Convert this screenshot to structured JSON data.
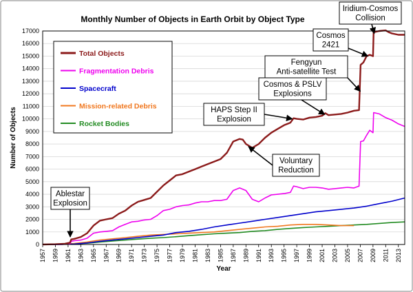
{
  "chart_data": {
    "type": "line",
    "title": "Monthly Number of Objects in Earth Orbit by Object Type",
    "xlabel": "Year",
    "ylabel": "Number of Objects",
    "xlim": [
      1957,
      2014
    ],
    "ylim": [
      0,
      17000
    ],
    "x_ticks": [
      "1957",
      "1959",
      "1961",
      "1963",
      "1965",
      "1967",
      "1969",
      "1971",
      "1973",
      "1975",
      "1977",
      "1979",
      "1981",
      "1983",
      "1985",
      "1987",
      "1989",
      "1991",
      "1993",
      "1995",
      "1997",
      "1999",
      "2001",
      "2003",
      "2005",
      "2007",
      "2009",
      "2011",
      "2013"
    ],
    "y_ticks": [
      "0",
      "1000",
      "2000",
      "3000",
      "4000",
      "5000",
      "6000",
      "7000",
      "8000",
      "9000",
      "10000",
      "11000",
      "12000",
      "13000",
      "14000",
      "15000",
      "16000",
      "17000"
    ],
    "grid": true,
    "legend_position": "top-left",
    "series": [
      {
        "name": "Total Objects",
        "color": "#8b1a1a",
        "points": [
          [
            1957,
            0
          ],
          [
            1959,
            20
          ],
          [
            1960.5,
            60
          ],
          [
            1961.3,
            150
          ],
          [
            1961.5,
            400
          ],
          [
            1962,
            450
          ],
          [
            1963,
            600
          ],
          [
            1964,
            900
          ],
          [
            1965,
            1500
          ],
          [
            1966,
            1900
          ],
          [
            1967,
            2000
          ],
          [
            1968,
            2100
          ],
          [
            1969,
            2450
          ],
          [
            1970,
            2700
          ],
          [
            1971,
            3100
          ],
          [
            1972,
            3400
          ],
          [
            1973,
            3550
          ],
          [
            1974,
            3700
          ],
          [
            1975,
            4200
          ],
          [
            1976,
            4700
          ],
          [
            1977,
            5100
          ],
          [
            1978,
            5500
          ],
          [
            1979,
            5600
          ],
          [
            1980,
            5800
          ],
          [
            1981,
            6000
          ],
          [
            1982,
            6200
          ],
          [
            1983,
            6400
          ],
          [
            1984,
            6600
          ],
          [
            1985,
            6800
          ],
          [
            1986,
            7300
          ],
          [
            1987,
            8200
          ],
          [
            1988,
            8400
          ],
          [
            1988.5,
            8350
          ],
          [
            1989,
            8000
          ],
          [
            1990,
            7700
          ],
          [
            1991,
            8000
          ],
          [
            1992,
            8500
          ],
          [
            1993,
            8900
          ],
          [
            1994,
            9200
          ],
          [
            1995,
            9500
          ],
          [
            1996,
            9700
          ],
          [
            1996.5,
            10050
          ],
          [
            1997,
            10000
          ],
          [
            1998,
            9950
          ],
          [
            1999,
            10100
          ],
          [
            2000,
            10150
          ],
          [
            2001,
            10250
          ],
          [
            2001.5,
            10450
          ],
          [
            2002,
            10300
          ],
          [
            2003,
            10350
          ],
          [
            2004,
            10400
          ],
          [
            2005,
            10500
          ],
          [
            2006,
            10650
          ],
          [
            2006.8,
            10700
          ],
          [
            2007.05,
            14300
          ],
          [
            2007.5,
            14500
          ],
          [
            2008,
            15000
          ],
          [
            2008.5,
            15100
          ],
          [
            2009,
            15000
          ],
          [
            2009.1,
            16900
          ],
          [
            2010,
            17000
          ],
          [
            2011,
            17050
          ],
          [
            2011.5,
            16900
          ],
          [
            2012,
            16800
          ],
          [
            2013,
            16700
          ],
          [
            2014,
            16700
          ]
        ]
      },
      {
        "name": "Fragmentation Debris",
        "color": "#ee00ee",
        "points": [
          [
            1957,
            0
          ],
          [
            1960,
            0
          ],
          [
            1961.3,
            50
          ],
          [
            1961.5,
            250
          ],
          [
            1962,
            300
          ],
          [
            1963,
            350
          ],
          [
            1964,
            500
          ],
          [
            1965,
            900
          ],
          [
            1966,
            1000
          ],
          [
            1967,
            1050
          ],
          [
            1968,
            1100
          ],
          [
            1969,
            1400
          ],
          [
            1970,
            1600
          ],
          [
            1971,
            1800
          ],
          [
            1972,
            1850
          ],
          [
            1973,
            1950
          ],
          [
            1974,
            2000
          ],
          [
            1975,
            2300
          ],
          [
            1976,
            2700
          ],
          [
            1977,
            2800
          ],
          [
            1978,
            3000
          ],
          [
            1979,
            3100
          ],
          [
            1980,
            3150
          ],
          [
            1981,
            3300
          ],
          [
            1982,
            3400
          ],
          [
            1983,
            3400
          ],
          [
            1984,
            3500
          ],
          [
            1985,
            3500
          ],
          [
            1986,
            3600
          ],
          [
            1987,
            4300
          ],
          [
            1988,
            4500
          ],
          [
            1989,
            4300
          ],
          [
            1990,
            3600
          ],
          [
            1991,
            3400
          ],
          [
            1992,
            3700
          ],
          [
            1993,
            3950
          ],
          [
            1994,
            4000
          ],
          [
            1995,
            4050
          ],
          [
            1996,
            4150
          ],
          [
            1996.5,
            4650
          ],
          [
            1997,
            4600
          ],
          [
            1998,
            4450
          ],
          [
            1999,
            4550
          ],
          [
            2000,
            4550
          ],
          [
            2001,
            4500
          ],
          [
            2002,
            4400
          ],
          [
            2003,
            4450
          ],
          [
            2004,
            4500
          ],
          [
            2005,
            4550
          ],
          [
            2006,
            4500
          ],
          [
            2006.8,
            4650
          ],
          [
            2007.05,
            8200
          ],
          [
            2007.5,
            8250
          ],
          [
            2008,
            8700
          ],
          [
            2008.5,
            9100
          ],
          [
            2009,
            8900
          ],
          [
            2009.1,
            10500
          ],
          [
            2010,
            10400
          ],
          [
            2011,
            10100
          ],
          [
            2012,
            9900
          ],
          [
            2013,
            9600
          ],
          [
            2014,
            9400
          ]
        ]
      },
      {
        "name": "Spacecraft",
        "color": "#0000cc",
        "points": [
          [
            1957,
            0
          ],
          [
            1960,
            10
          ],
          [
            1962,
            40
          ],
          [
            1964,
            120
          ],
          [
            1966,
            250
          ],
          [
            1968,
            350
          ],
          [
            1970,
            450
          ],
          [
            1972,
            550
          ],
          [
            1974,
            650
          ],
          [
            1976,
            750
          ],
          [
            1978,
            950
          ],
          [
            1980,
            1050
          ],
          [
            1982,
            1200
          ],
          [
            1984,
            1400
          ],
          [
            1986,
            1550
          ],
          [
            1988,
            1700
          ],
          [
            1990,
            1850
          ],
          [
            1992,
            2000
          ],
          [
            1994,
            2150
          ],
          [
            1996,
            2300
          ],
          [
            1998,
            2450
          ],
          [
            2000,
            2600
          ],
          [
            2002,
            2700
          ],
          [
            2004,
            2800
          ],
          [
            2006,
            2900
          ],
          [
            2008,
            3050
          ],
          [
            2010,
            3250
          ],
          [
            2012,
            3450
          ],
          [
            2014,
            3700
          ]
        ]
      },
      {
        "name": "Mission-related Debris",
        "color": "#f07820",
        "points": [
          [
            1957,
            0
          ],
          [
            1960,
            20
          ],
          [
            1962,
            80
          ],
          [
            1964,
            200
          ],
          [
            1966,
            350
          ],
          [
            1968,
            450
          ],
          [
            1970,
            550
          ],
          [
            1972,
            650
          ],
          [
            1974,
            750
          ],
          [
            1976,
            800
          ],
          [
            1978,
            850
          ],
          [
            1980,
            900
          ],
          [
            1982,
            950
          ],
          [
            1984,
            1000
          ],
          [
            1986,
            1100
          ],
          [
            1988,
            1200
          ],
          [
            1990,
            1300
          ],
          [
            1992,
            1400
          ],
          [
            1994,
            1450
          ],
          [
            1996,
            1550
          ],
          [
            1998,
            1600
          ],
          [
            2000,
            1600
          ],
          [
            2002,
            1550
          ],
          [
            2004,
            1500
          ],
          [
            2006,
            1500
          ]
        ]
      },
      {
        "name": "Rocket Bodies",
        "color": "#228b22",
        "points": [
          [
            1957,
            0
          ],
          [
            1960,
            10
          ],
          [
            1962,
            50
          ],
          [
            1964,
            100
          ],
          [
            1966,
            200
          ],
          [
            1968,
            280
          ],
          [
            1970,
            350
          ],
          [
            1972,
            430
          ],
          [
            1974,
            500
          ],
          [
            1976,
            550
          ],
          [
            1978,
            620
          ],
          [
            1980,
            700
          ],
          [
            1982,
            780
          ],
          [
            1984,
            850
          ],
          [
            1986,
            900
          ],
          [
            1988,
            950
          ],
          [
            1990,
            1050
          ],
          [
            1992,
            1100
          ],
          [
            1994,
            1200
          ],
          [
            1996,
            1280
          ],
          [
            1998,
            1350
          ],
          [
            2000,
            1400
          ],
          [
            2002,
            1450
          ],
          [
            2004,
            1500
          ],
          [
            2006,
            1550
          ],
          [
            2008,
            1600
          ],
          [
            2010,
            1680
          ],
          [
            2012,
            1750
          ],
          [
            2014,
            1800
          ]
        ]
      }
    ],
    "annotations": [
      {
        "id": "ablestar",
        "lines": [
          "Ablestar",
          "Explosion"
        ]
      },
      {
        "id": "haps",
        "lines": [
          "HAPS Step II",
          "Explosion"
        ]
      },
      {
        "id": "voluntary",
        "lines": [
          "Voluntary",
          "Reduction"
        ]
      },
      {
        "id": "cosmos-pslv",
        "lines": [
          "Cosmos & PSLV",
          "Explosions"
        ]
      },
      {
        "id": "fengyun",
        "lines": [
          "Fengyun",
          "Anti-satellite Test"
        ]
      },
      {
        "id": "cosmos2421",
        "lines": [
          "Cosmos",
          "2421"
        ]
      },
      {
        "id": "iridium",
        "lines": [
          "Iridium-Cosmos",
          "Collision"
        ]
      }
    ]
  }
}
